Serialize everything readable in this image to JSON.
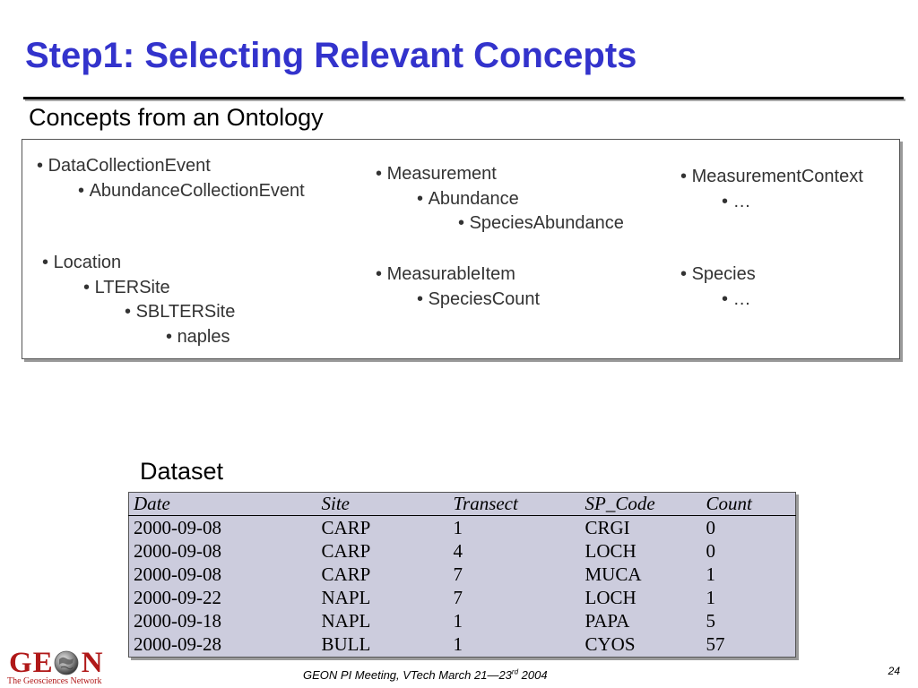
{
  "slide": {
    "title": "Step1: Selecting Relevant Concepts",
    "page_number": "24"
  },
  "concepts": {
    "heading": "Concepts from an Ontology",
    "groups": [
      {
        "items": [
          {
            "label": "DataCollectionEvent",
            "level": 0
          },
          {
            "label": "AbundanceCollectionEvent",
            "level": 1
          }
        ]
      },
      {
        "items": [
          {
            "label": "Measurement",
            "level": 0
          },
          {
            "label": "Abundance",
            "level": 1
          },
          {
            "label": "SpeciesAbundance",
            "level": 2
          }
        ]
      },
      {
        "items": [
          {
            "label": "MeasurementContext",
            "level": 0
          },
          {
            "label": "…",
            "level": 1
          }
        ]
      },
      {
        "items": [
          {
            "label": "Location",
            "level": 0
          },
          {
            "label": "LTERSite",
            "level": 1
          },
          {
            "label": "SBLTERSite",
            "level": 2
          },
          {
            "label": "naples",
            "level": 3
          }
        ]
      },
      {
        "items": [
          {
            "label": "MeasurableItem",
            "level": 0
          },
          {
            "label": "SpeciesCount",
            "level": 1
          }
        ]
      },
      {
        "items": [
          {
            "label": "Species",
            "level": 0
          },
          {
            "label": "…",
            "level": 1
          }
        ]
      }
    ]
  },
  "dataset": {
    "heading": "Dataset",
    "columns": [
      "Date",
      "Site",
      "Transect",
      "SP_Code",
      "Count"
    ],
    "rows": [
      [
        "2000-09-08",
        "CARP",
        "1",
        "CRGI",
        "0"
      ],
      [
        "2000-09-08",
        "CARP",
        "4",
        "LOCH",
        "0"
      ],
      [
        "2000-09-08",
        "CARP",
        "7",
        "MUCA",
        "1"
      ],
      [
        "2000-09-22",
        "NAPL",
        "7",
        "LOCH",
        "1"
      ],
      [
        "2000-09-18",
        "NAPL",
        "1",
        "PAPA",
        "5"
      ],
      [
        "2000-09-28",
        "BULL",
        "1",
        "CYOS",
        "57"
      ]
    ]
  },
  "footer": {
    "meeting_text": "GEON PI Meeting, VTech March 21—23",
    "meeting_sup": "rd",
    "meeting_year": " 2004"
  },
  "logo": {
    "word_left": "GE",
    "word_right": "N",
    "tagline": "The Geosciences Network"
  },
  "colors": {
    "title": "#3333cc",
    "concept_text": "#333333",
    "table_background": "#ccccdd",
    "logo": "#b01818"
  }
}
